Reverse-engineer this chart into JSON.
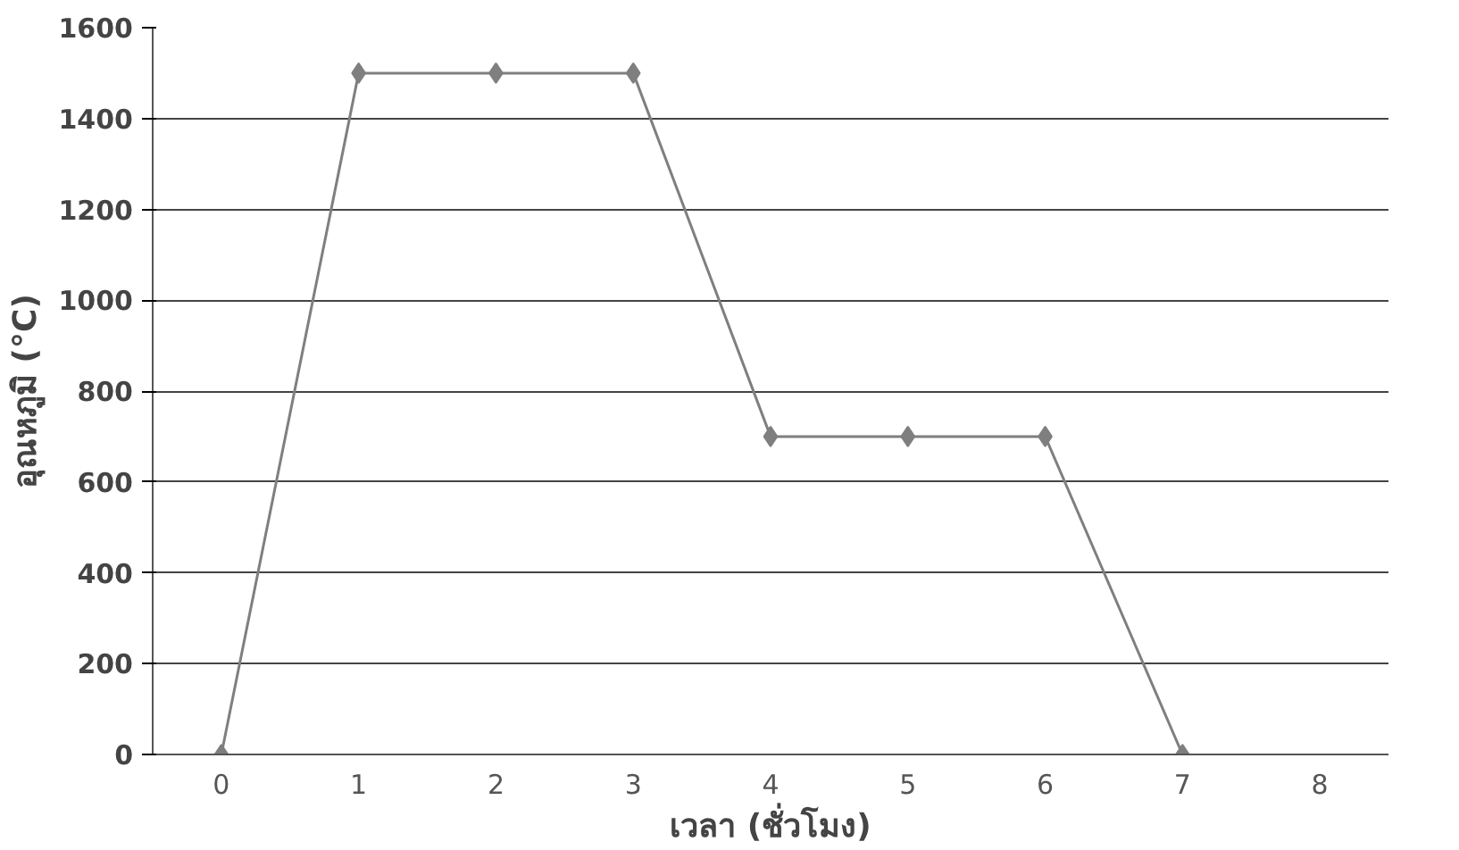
{
  "chart_data": {
    "type": "line",
    "xlabel": "เวลา (ชั่วโมง)",
    "ylabel": "อุณหภูมิ (°C)",
    "categories": [
      "0",
      "1",
      "2",
      "3",
      "4",
      "5",
      "6",
      "7",
      "8"
    ],
    "series": [
      {
        "color": "#7f7f7f",
        "values": [
          0,
          1500,
          1500,
          1500,
          700,
          700,
          700,
          0,
          null
        ]
      }
    ],
    "ylim": [
      0,
      1600
    ],
    "yticks": [
      0,
      200,
      400,
      600,
      800,
      1000,
      1200,
      1400,
      1600
    ],
    "grid": "y",
    "marker": "diamond",
    "line_style": "solid"
  }
}
